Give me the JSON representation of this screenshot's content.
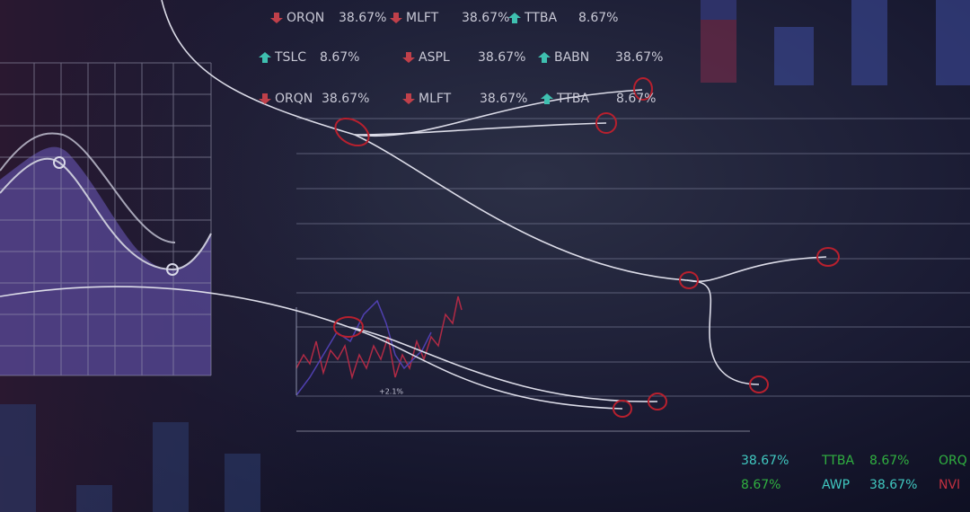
{
  "ticker_rows": [
    [
      {
        "symbol": "ORQN",
        "change": "38.67%",
        "direction": "down"
      },
      {
        "symbol": "MLFT",
        "change": "38.67%",
        "direction": "down"
      },
      {
        "symbol": "TTBA",
        "change": "8.67%",
        "direction": "up"
      }
    ],
    [
      {
        "symbol": "TSLC",
        "change": "8.67%",
        "direction": "up"
      },
      {
        "symbol": "ASPL",
        "change": "38.67%",
        "direction": "down"
      },
      {
        "symbol": "BABN",
        "change": "38.67%",
        "direction": "up"
      }
    ],
    [
      {
        "symbol": "ORQN",
        "change": "38.67%",
        "direction": "down"
      },
      {
        "symbol": "MLFT",
        "change": "38.67%",
        "direction": "down"
      },
      {
        "symbol": "TTBA",
        "change": "8.67%",
        "direction": "up"
      }
    ]
  ],
  "mini_chart_label": "+2.1%",
  "bottom_tickers": [
    [
      "38.67%",
      "TTBA",
      "8.67%",
      "ORQ"
    ],
    [
      "8.67%",
      "AWP",
      "38.67%",
      "NVI"
    ]
  ]
}
